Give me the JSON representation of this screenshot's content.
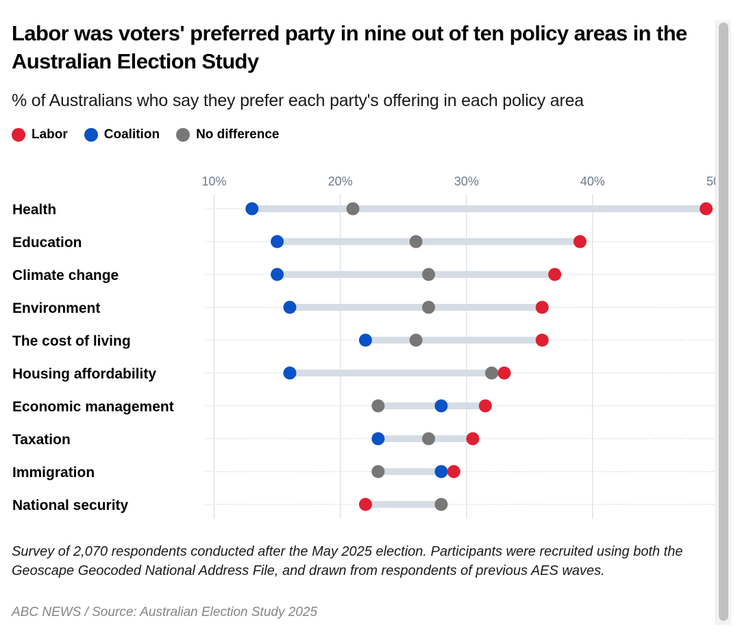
{
  "header": {
    "title": "Labor was voters' preferred party in nine out of ten policy areas in the Australian Election Study",
    "subtitle": "% of Australians who say they prefer each party's offering in each policy area"
  },
  "legend": [
    {
      "label": "Labor",
      "color": "#e11f32"
    },
    {
      "label": "Coalition",
      "color": "#0a52c6"
    },
    {
      "label": "No difference",
      "color": "#777777"
    }
  ],
  "footer": {
    "note": "Survey of 2,070 respondents conducted after the May 2025 election. Participants were recruited using both the Geoscape Geocoded National Address File, and drawn from respondents of previous AES waves.",
    "source": "ABC NEWS / Source: Australian Election Study 2025"
  },
  "chart_data": {
    "type": "dot-range",
    "title": "Labor was voters' preferred party in nine out of ten policy areas in the Australian Election Study",
    "subtitle": "% of Australians who say they prefer each party's offering in each policy area",
    "xlabel": "",
    "ylabel": "",
    "xlim": [
      10,
      50
    ],
    "xticks": [
      10,
      20,
      30,
      40,
      50
    ],
    "xtick_labels": [
      "10%",
      "20%",
      "30%",
      "40%",
      "50%"
    ],
    "grid": true,
    "legend_position": "top-left",
    "categories": [
      "Health",
      "Education",
      "Climate change",
      "Environment",
      "The cost of living",
      "Housing affordability",
      "Economic management",
      "Taxation",
      "Immigration",
      "National security"
    ],
    "series": [
      {
        "name": "Labor",
        "color": "#e11f32",
        "values": [
          49,
          39,
          37,
          36,
          36,
          33,
          31.5,
          30.5,
          29,
          22
        ]
      },
      {
        "name": "Coalition",
        "color": "#0a52c6",
        "values": [
          13,
          15,
          15,
          16,
          22,
          null,
          28,
          23,
          28,
          null
        ]
      },
      {
        "name": "No difference",
        "color": "#777777",
        "values": [
          21,
          26,
          27,
          27,
          26,
          32,
          23,
          27,
          23,
          28
        ]
      }
    ],
    "coalition_housing": 16,
    "coalition_security": null
  }
}
